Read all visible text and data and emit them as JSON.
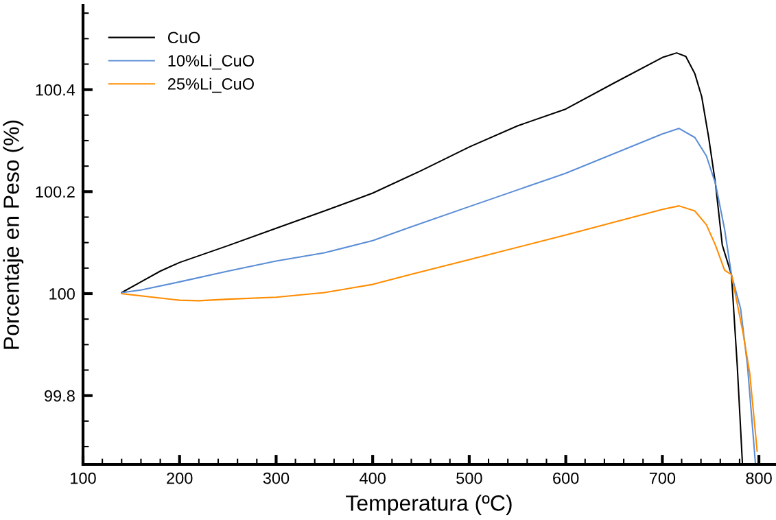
{
  "chart_data": {
    "type": "line",
    "xlabel": "Temperatura (ºC)",
    "ylabel": "Porcentaje en Peso (%)",
    "xlim": [
      100,
      817
    ],
    "xticks": [
      100,
      200,
      300,
      400,
      500,
      600,
      700,
      800
    ],
    "ylim": [
      99.665,
      100.565
    ],
    "yticks": [
      {
        "value": 99.8,
        "label": "99.8"
      },
      {
        "value": 100,
        "label": "100"
      },
      {
        "value": 100.2,
        "label": "100.2"
      },
      {
        "value": 100.4,
        "label": "100.4"
      }
    ],
    "grid": false,
    "legend": "top left",
    "marker": "none",
    "line_style": "solid",
    "series": [
      {
        "name": "CuO",
        "color": "#000000",
        "x": [
          140,
          160,
          180,
          200,
          250,
          300,
          350,
          400,
          450,
          500.6,
          550,
          600,
          650,
          700,
          714.8,
          724.3,
          733.7,
          740.8,
          748,
          755,
          762.1,
          771.6,
          777.6,
          783
        ],
        "values": [
          100.002,
          100.023,
          100.044,
          100.061,
          100.094,
          100.128,
          100.162,
          100.197,
          100.241,
          100.288,
          100.329,
          100.362,
          100.413,
          100.463,
          100.472,
          100.465,
          100.431,
          100.386,
          100.306,
          100.216,
          100.095,
          100.037,
          99.858,
          99.665
        ]
      },
      {
        "name": "10%Li_CuO",
        "color": "#5b8ed6",
        "x": [
          140,
          160,
          200,
          250,
          300,
          350,
          400,
          440.2,
          500.6,
          600,
          700,
          717.2,
          733.7,
          745.6,
          755,
          764.5,
          771.6,
          781.1,
          788.2,
          796.5
        ],
        "values": [
          100.002,
          100.007,
          100.023,
          100.044,
          100.064,
          100.08,
          100.104,
          100.131,
          100.171,
          100.236,
          100.313,
          100.324,
          100.306,
          100.27,
          100.216,
          100.126,
          100.037,
          99.97,
          99.858,
          99.665
        ]
      },
      {
        "name": "25%Li_CuO",
        "color": "#ff8c00",
        "x": [
          140,
          200,
          220,
          250,
          300,
          350,
          400,
          440.2,
          500.6,
          600,
          700,
          717.2,
          733.7,
          745.6,
          755,
          764.5,
          771.6,
          783.4,
          790.5,
          798.2
        ],
        "values": [
          100.0,
          99.987,
          99.986,
          99.989,
          99.993,
          100.002,
          100.018,
          100.038,
          100.067,
          100.115,
          100.165,
          100.172,
          100.162,
          100.135,
          100.095,
          100.046,
          100.037,
          99.925,
          99.844,
          99.691
        ]
      }
    ]
  }
}
